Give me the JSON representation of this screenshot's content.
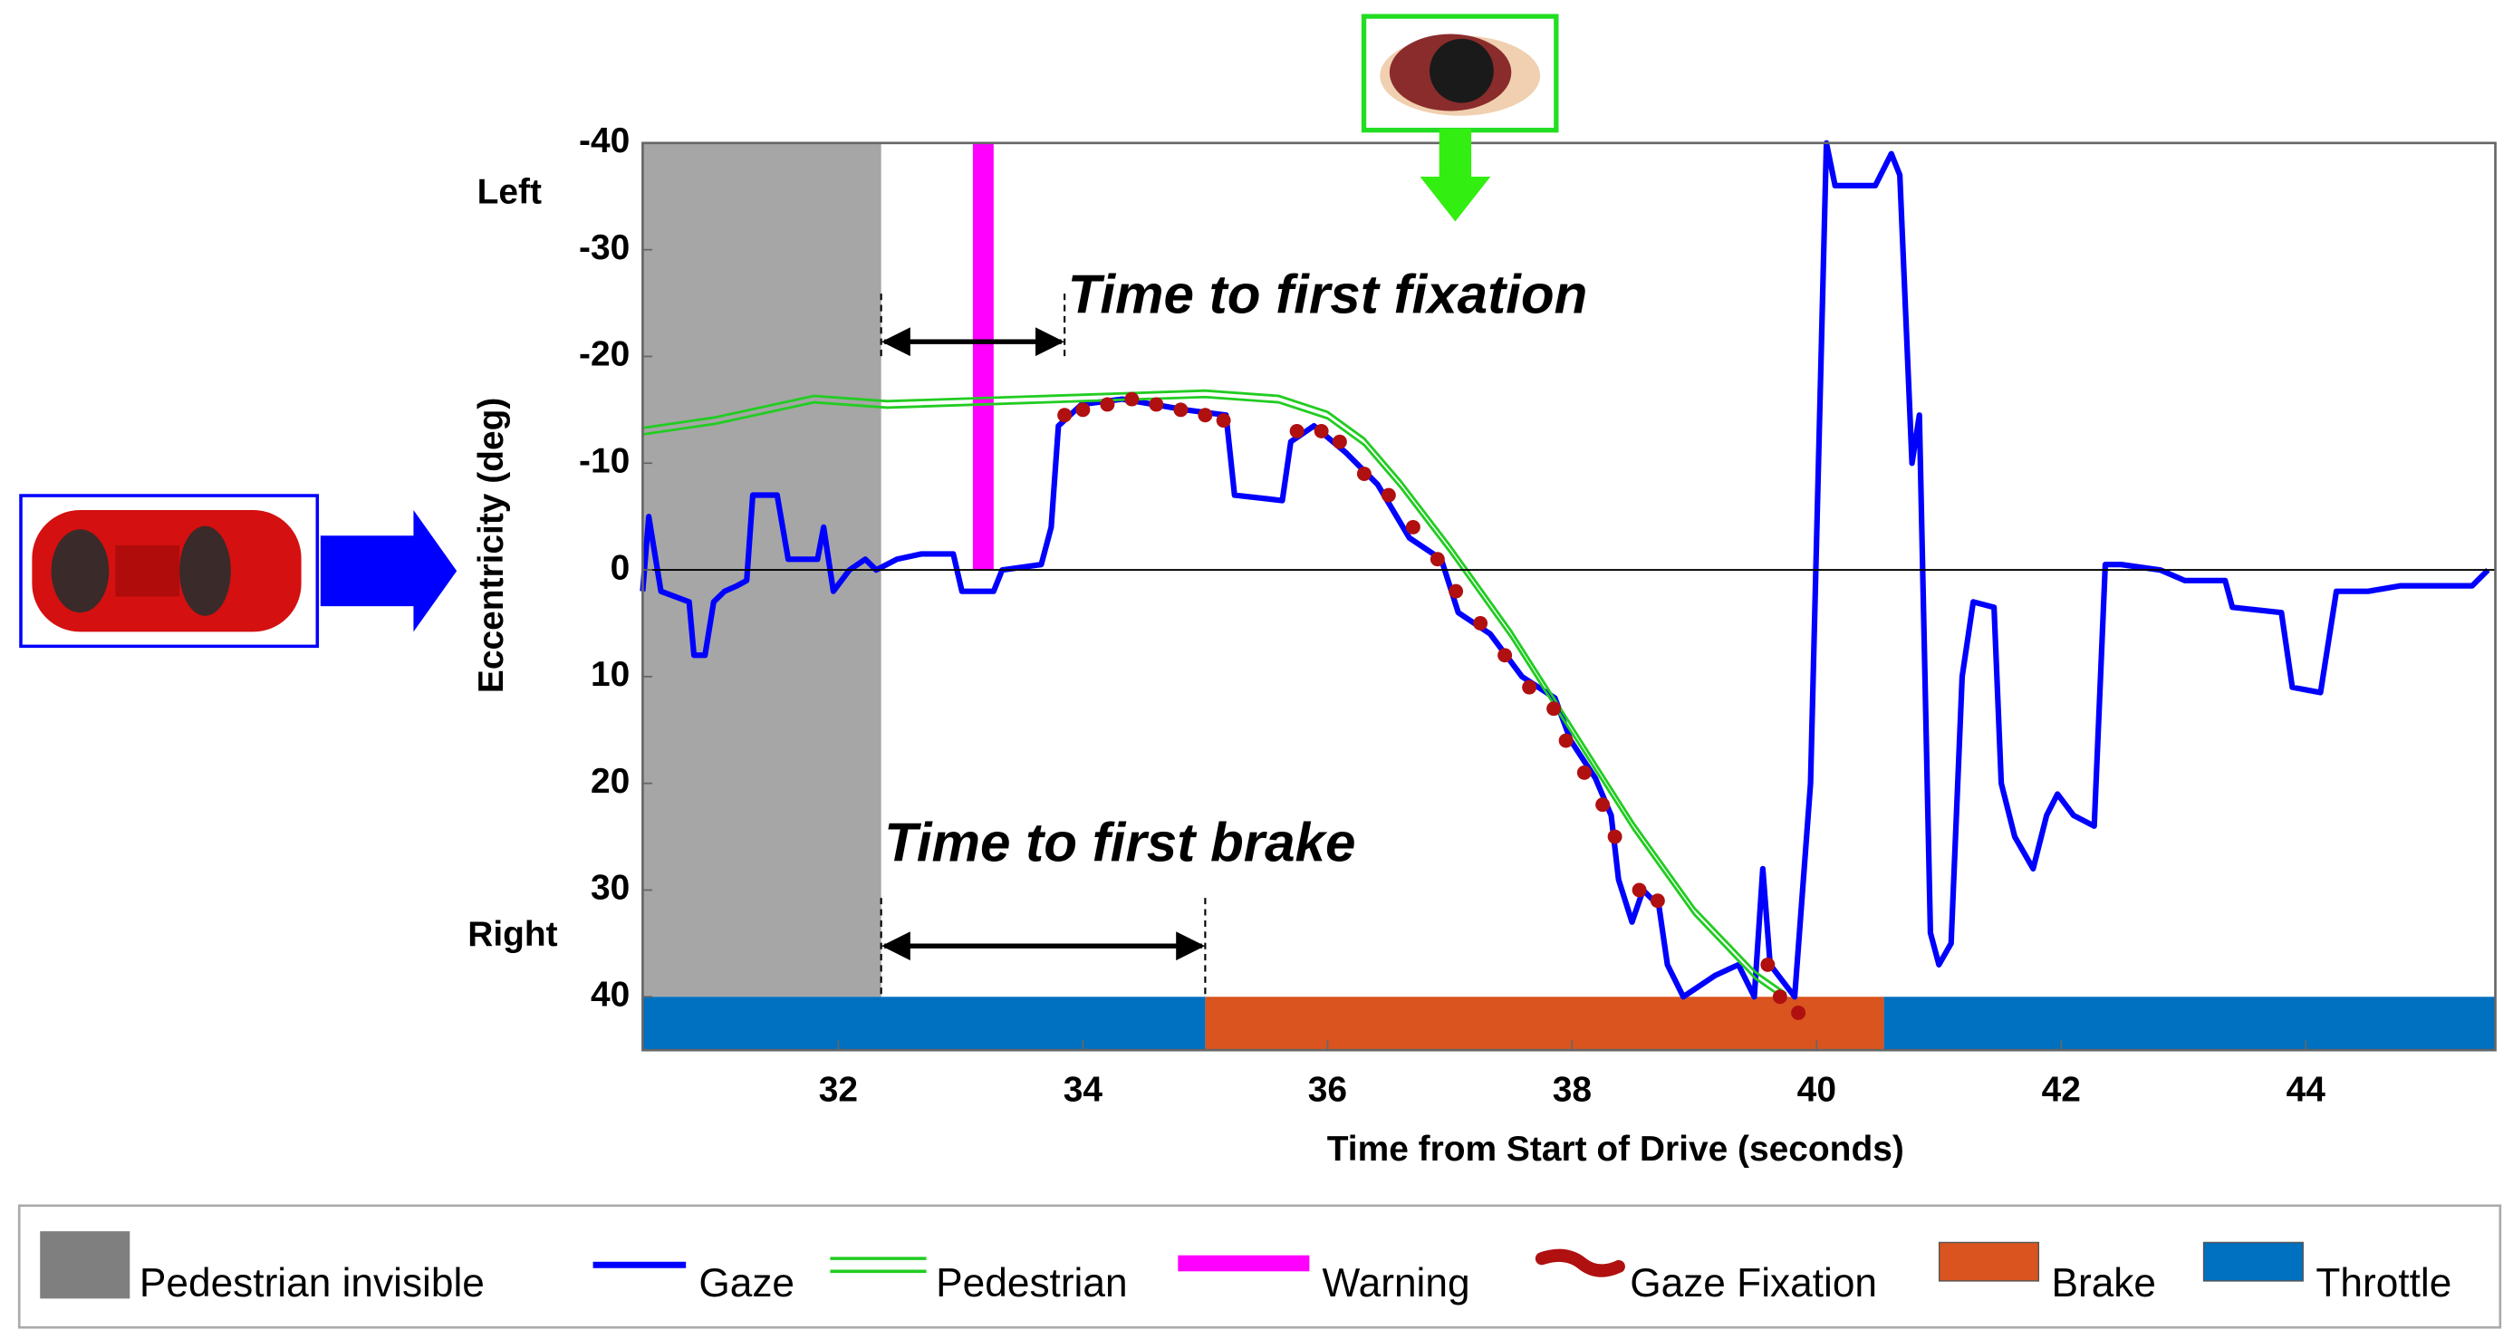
{
  "chart_data": {
    "type": "line",
    "x_label": "Time from Start of Drive (seconds)",
    "y_label": "Eccentricity (deg)",
    "y_side_labels": [
      "Left",
      "Right"
    ],
    "xlim": [
      30.4,
      45.55
    ],
    "xticks": [
      32,
      34,
      36,
      38,
      40,
      42,
      44
    ],
    "ylim": [
      -40,
      45
    ],
    "yticks": [
      -40,
      -30,
      -20,
      -10,
      0,
      10,
      20,
      30,
      40
    ],
    "y_inverted": true,
    "zero_line": true,
    "series": [
      {
        "name": "Pedestrian invisible",
        "kind": "span",
        "color": "#a6a6a6",
        "spans": [
          [
            30.4,
            32.35
          ]
        ]
      },
      {
        "name": "Gaze",
        "kind": "line",
        "color": "#0000ff",
        "x": [
          30.4,
          30.45,
          30.55,
          30.78,
          30.82,
          30.91,
          30.98,
          31.07,
          31.17,
          31.25,
          31.3,
          31.5,
          31.59,
          31.83,
          31.88,
          31.96,
          32.09,
          32.22,
          32.31,
          32.48,
          32.68,
          32.94,
          33.01,
          33.27,
          33.34,
          33.66,
          33.74,
          33.8,
          33.99,
          34.32,
          34.58,
          34.84,
          35.17,
          35.24,
          35.63,
          35.7,
          35.89,
          36.15,
          36.41,
          36.67,
          36.93,
          37.07,
          37.33,
          37.59,
          37.86,
          37.99,
          38.19,
          38.32,
          38.38,
          38.49,
          38.58,
          38.71,
          38.78,
          38.91,
          39.17,
          39.36,
          39.49,
          39.56,
          39.62,
          39.82,
          39.95,
          40.08,
          40.15,
          40.48,
          40.61,
          40.68,
          40.78,
          40.84,
          40.93,
          41.0,
          41.1,
          41.19,
          41.28,
          41.45,
          41.51,
          41.62,
          41.77,
          41.88,
          41.97,
          42.1,
          42.27,
          42.36,
          42.49,
          42.81,
          43.01,
          43.34,
          43.4,
          43.8,
          43.89,
          44.12,
          44.25,
          44.51,
          44.77,
          45.36,
          45.49
        ],
        "values": [
          2,
          -5,
          2,
          3,
          8,
          8,
          3,
          2,
          1.5,
          1,
          -7,
          -7,
          -1,
          -1,
          -4,
          2,
          0,
          -1,
          0,
          -1,
          -1.5,
          -1.5,
          2,
          2,
          0,
          -0.5,
          -4,
          -13.5,
          -15.5,
          -16,
          -15.5,
          -15,
          -14.5,
          -7,
          -6.5,
          -12,
          -13.5,
          -11,
          -8,
          -3,
          -1,
          4,
          6,
          10,
          12,
          16,
          19.5,
          23,
          29,
          33,
          30,
          31.5,
          37,
          40,
          38,
          37,
          40,
          28,
          37,
          40,
          20,
          -40,
          -36,
          -36,
          -39,
          -37,
          -10,
          -14.5,
          34,
          37,
          35,
          10,
          3,
          3.5,
          20,
          25,
          28,
          23,
          21,
          23,
          24,
          -0.5,
          -0.5,
          0,
          1,
          1,
          3.5,
          4,
          11,
          11.5,
          2,
          2,
          1.5,
          1.5,
          0
        ]
      },
      {
        "name": "Pedestrian",
        "kind": "double-line",
        "color": "#22cc22",
        "x": [
          30.4,
          31.0,
          31.8,
          32.4,
          35.0,
          35.6,
          36.0,
          36.3,
          36.6,
          37.0,
          37.5,
          38.0,
          38.5,
          39.0,
          39.5,
          39.75
        ],
        "values": [
          -13,
          -14,
          -16,
          -15.5,
          -16.5,
          -16,
          -14.5,
          -12,
          -8,
          -2,
          6,
          15,
          24,
          32,
          38,
          40
        ]
      },
      {
        "name": "Warning",
        "kind": "span",
        "color": "#ff00ff",
        "spans": [
          [
            33.1,
            33.27
          ]
        ]
      },
      {
        "name": "Gaze Fixation",
        "kind": "points",
        "color": "#b01010",
        "x": [
          33.85,
          34.0,
          34.2,
          34.4,
          34.6,
          34.8,
          35.0,
          35.15,
          35.75,
          35.95,
          36.1,
          36.3,
          36.5,
          36.7,
          36.9,
          37.05,
          37.25,
          37.45,
          37.65,
          37.85,
          37.95,
          38.1,
          38.25,
          38.35,
          38.55,
          38.7,
          39.6,
          39.7,
          39.85
        ],
        "values": [
          -14.5,
          -15,
          -15.5,
          -16,
          -15.5,
          -15,
          -14.5,
          -14,
          -13,
          -13,
          -12,
          -9,
          -7,
          -4,
          -1,
          2,
          5,
          8,
          11,
          13,
          16,
          19,
          22,
          25,
          30,
          31,
          37,
          40,
          41.5
        ]
      },
      {
        "name": "Brake",
        "kind": "band",
        "color": "#d9541e",
        "spans": [
          [
            35.0,
            40.55
          ]
        ]
      },
      {
        "name": "Throttle",
        "kind": "band",
        "color": "#0070c0",
        "spans": [
          [
            30.4,
            35.0
          ],
          [
            40.55,
            45.55
          ]
        ]
      }
    ],
    "intervals": [
      {
        "text": "Time to first fixation",
        "start": 32.35,
        "end": 33.85
      },
      {
        "text": "Time to first brake",
        "start": 32.35,
        "end": 35.0
      }
    ]
  }
}
